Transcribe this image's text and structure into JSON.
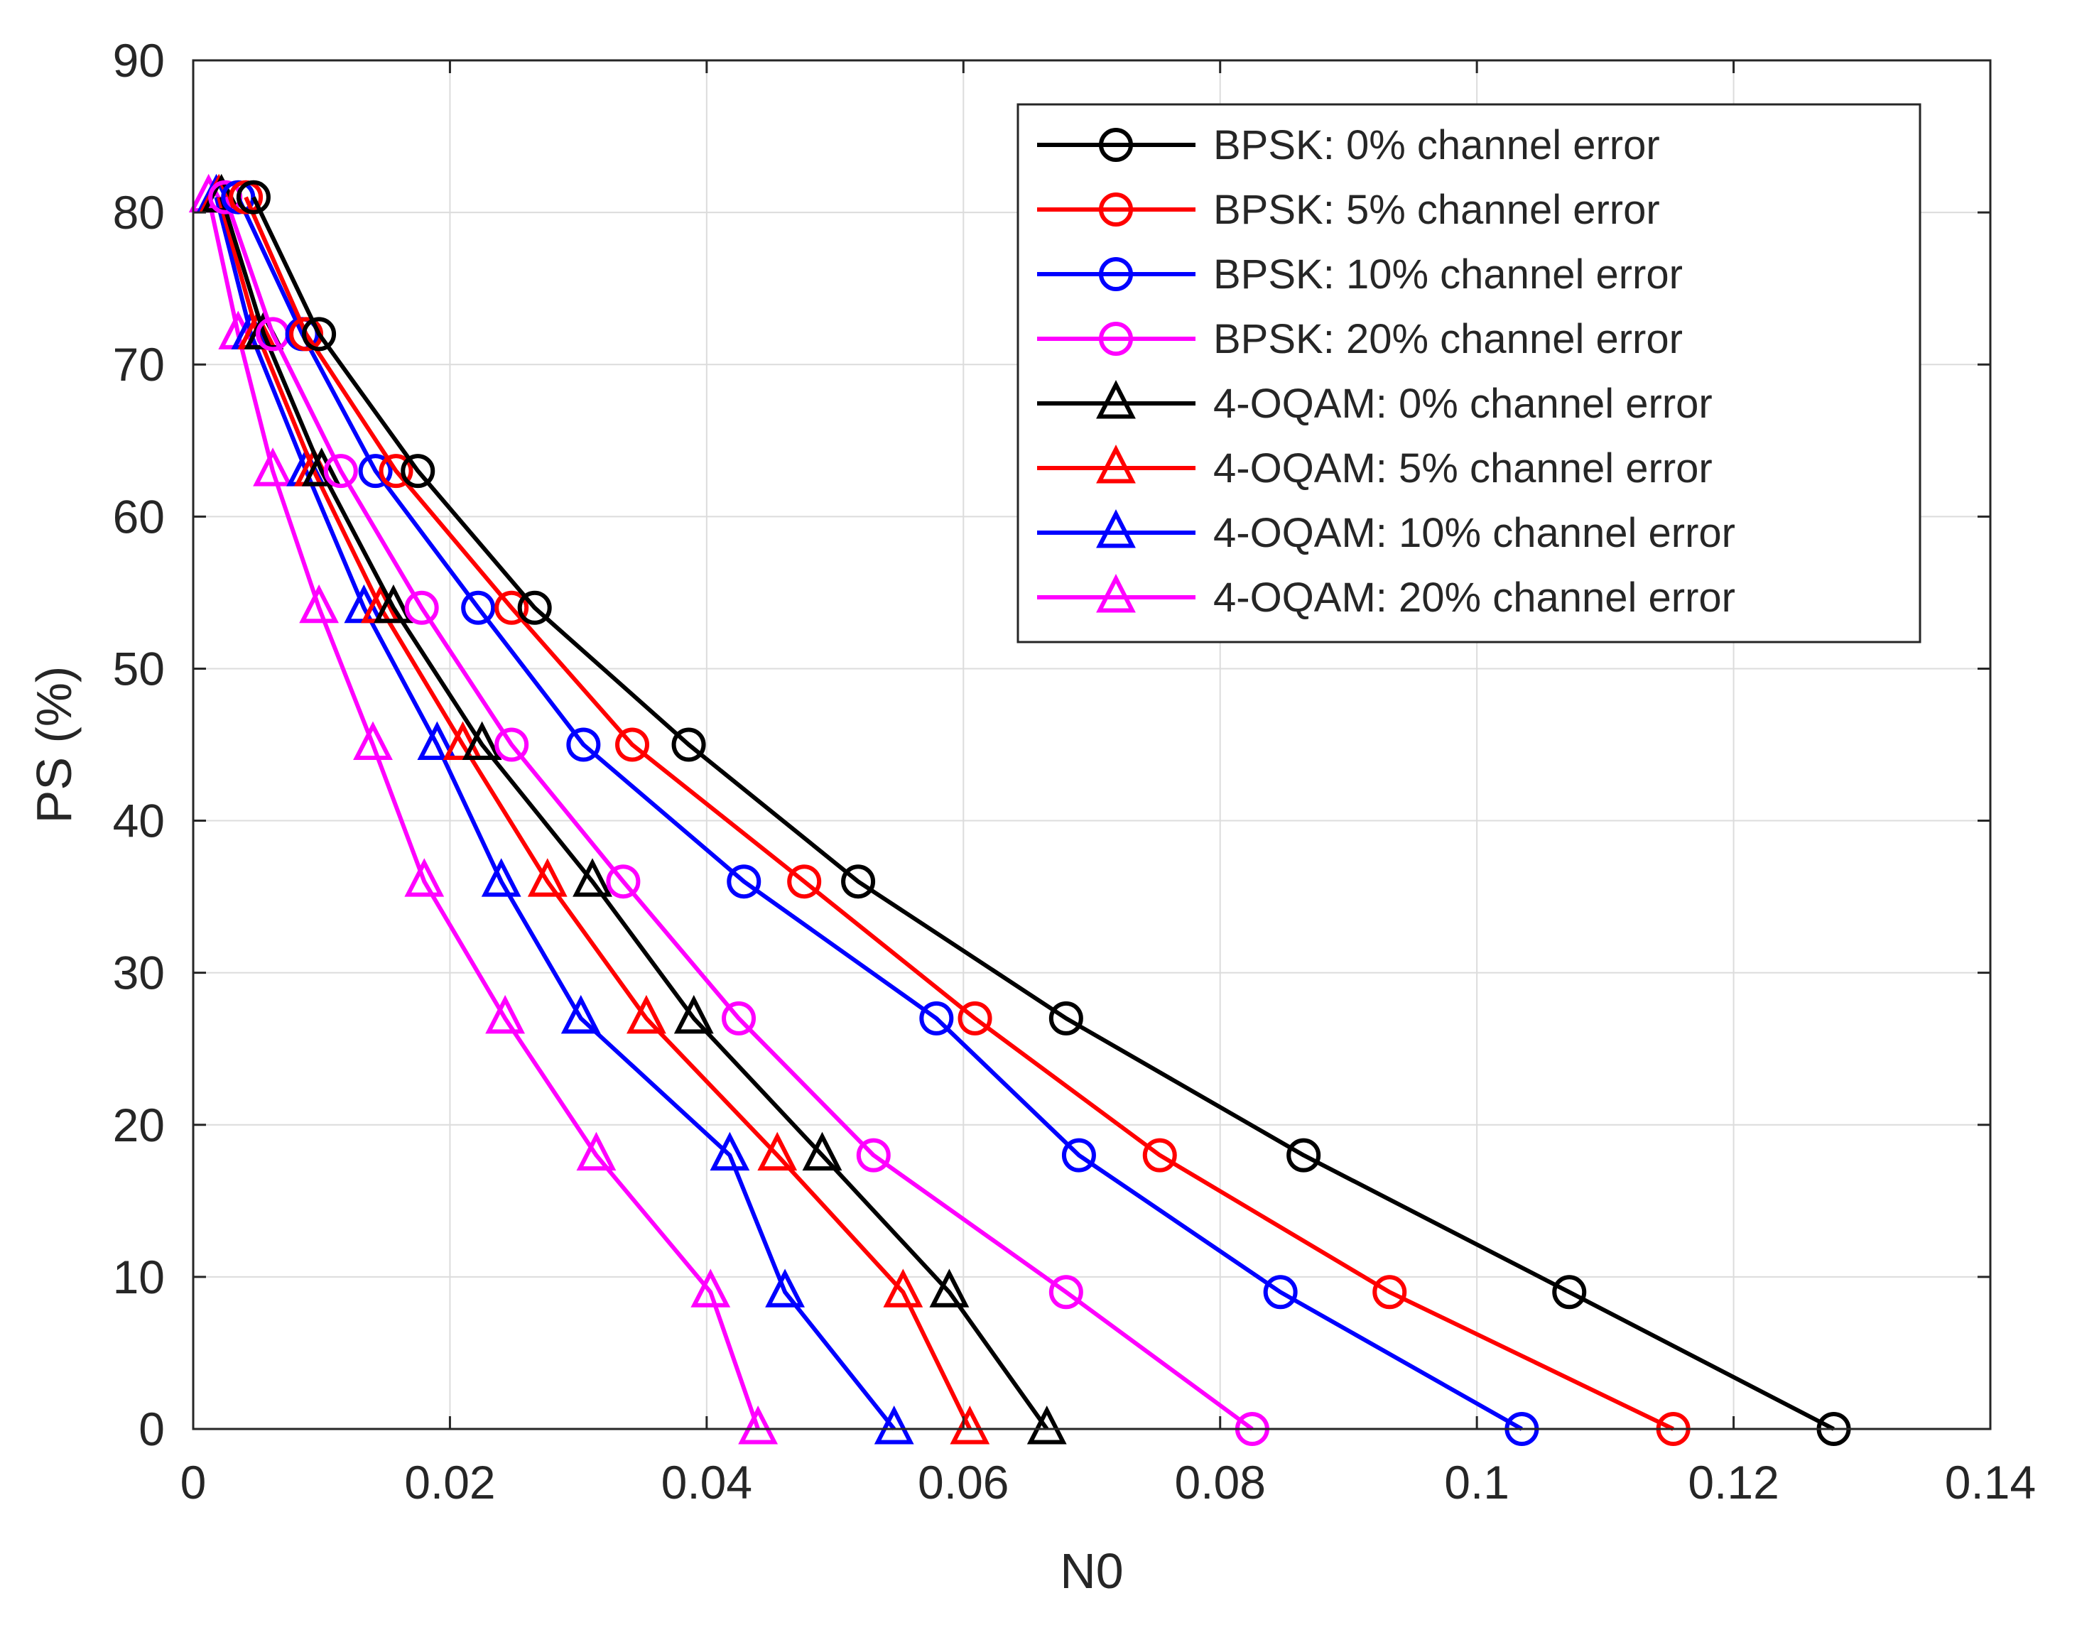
{
  "chart_data": {
    "type": "line",
    "title": "",
    "xlabel": "N0",
    "ylabel": "PS (%)",
    "xlim": [
      0,
      0.14
    ],
    "ylim": [
      0,
      90
    ],
    "xticks": [
      0,
      0.02,
      0.04,
      0.06,
      0.08,
      0.1,
      0.12,
      0.14
    ],
    "xtick_labels": [
      "0",
      "0.02",
      "0.04",
      "0.06",
      "0.08",
      "0.1",
      "0.12",
      "0.14"
    ],
    "yticks": [
      0,
      10,
      20,
      30,
      40,
      50,
      60,
      70,
      80,
      90
    ],
    "ytick_labels": [
      "0",
      "10",
      "20",
      "30",
      "40",
      "50",
      "60",
      "70",
      "80",
      "90"
    ],
    "grid": true,
    "legend_position": "top-right",
    "y": [
      81,
      72,
      63,
      54,
      45,
      36,
      27,
      18,
      9,
      0
    ],
    "series": [
      {
        "name": "BPSK:  0%  channel error",
        "color": "#000000",
        "marker": "circle",
        "x": [
          0.0047,
          0.0098,
          0.0175,
          0.0266,
          0.0386,
          0.0518,
          0.068,
          0.0865,
          0.1072,
          0.1278
        ]
      },
      {
        "name": "BPSK:  5%  channel error",
        "color": "#ff0000",
        "marker": "circle",
        "x": [
          0.0041,
          0.0088,
          0.0158,
          0.0248,
          0.0342,
          0.0476,
          0.0609,
          0.0753,
          0.0932,
          0.1153
        ]
      },
      {
        "name": "BPSK: 10%  channel error",
        "color": "#0000ff",
        "marker": "circle",
        "x": [
          0.0035,
          0.0085,
          0.0142,
          0.0222,
          0.0304,
          0.0429,
          0.0579,
          0.069,
          0.0847,
          0.1035
        ]
      },
      {
        "name": "BPSK: 20%  channel error",
        "color": "#ff00ff",
        "marker": "circle",
        "x": [
          0.0025,
          0.0062,
          0.0115,
          0.0178,
          0.0248,
          0.0335,
          0.0425,
          0.053,
          0.068,
          0.0825
        ]
      },
      {
        "name": "4-OQAM:  0%  channel error",
        "color": "#000000",
        "marker": "triangle",
        "x": [
          0.0022,
          0.0055,
          0.01,
          0.0156,
          0.0225,
          0.0311,
          0.039,
          0.049,
          0.0589,
          0.0665
        ]
      },
      {
        "name": "4-OQAM:  5%  channel error",
        "color": "#ff0000",
        "marker": "triangle",
        "x": [
          0.002,
          0.005,
          0.0094,
          0.0146,
          0.021,
          0.0276,
          0.0353,
          0.0455,
          0.0553,
          0.0605
        ]
      },
      {
        "name": "4-OQAM: 10%  channel error",
        "color": "#0000ff",
        "marker": "triangle",
        "x": [
          0.0018,
          0.0045,
          0.0088,
          0.0133,
          0.019,
          0.024,
          0.0302,
          0.0418,
          0.0461,
          0.0546
        ]
      },
      {
        "name": "4-OQAM: 20%  channel error",
        "color": "#ff00ff",
        "marker": "triangle",
        "x": [
          0.0012,
          0.0035,
          0.0062,
          0.0098,
          0.014,
          0.018,
          0.0243,
          0.0314,
          0.0403,
          0.044
        ]
      }
    ]
  }
}
